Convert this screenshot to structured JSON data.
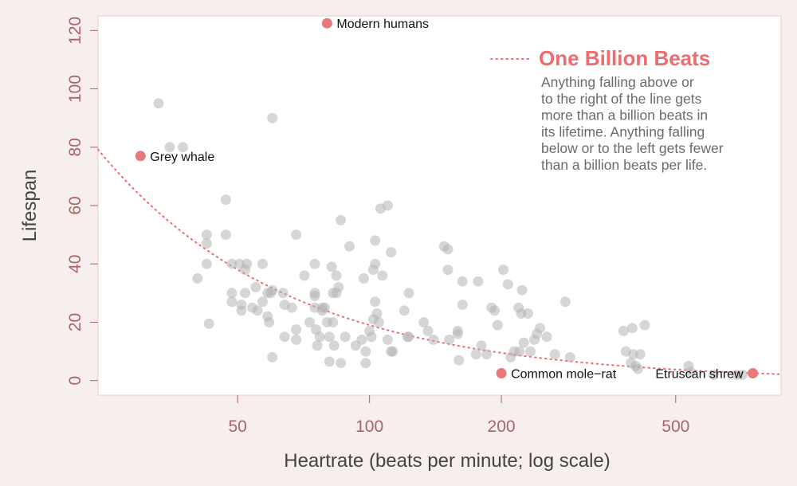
{
  "chart_data": {
    "type": "scatter",
    "title": "",
    "xlabel": "Heartrate (beats per minute; log scale)",
    "ylabel": "Lifespan",
    "x_scale": "log",
    "xlim": [
      24,
      870
    ],
    "ylim": [
      -5,
      125
    ],
    "x_ticks": [
      50,
      100,
      200,
      500
    ],
    "x_tick_labels": [
      "50",
      "100",
      "200",
      "500"
    ],
    "y_ticks": [
      0,
      20,
      40,
      60,
      80,
      100,
      120
    ],
    "y_tick_labels": [
      "0",
      "20",
      "40",
      "60",
      "80",
      "100",
      "120"
    ],
    "grid": false,
    "colors": {
      "points": "#b5b5b5",
      "highlight": "#e8787b",
      "curve": "#ef6a6d"
    },
    "points": [
      {
        "x": 33,
        "y": 95
      },
      {
        "x": 35,
        "y": 80
      },
      {
        "x": 37.5,
        "y": 80
      },
      {
        "x": 42.5,
        "y": 50
      },
      {
        "x": 42.5,
        "y": 47
      },
      {
        "x": 40.5,
        "y": 35
      },
      {
        "x": 42.5,
        "y": 40
      },
      {
        "x": 43,
        "y": 19.5
      },
      {
        "x": 47,
        "y": 62
      },
      {
        "x": 47,
        "y": 50
      },
      {
        "x": 48.5,
        "y": 40
      },
      {
        "x": 48.5,
        "y": 30
      },
      {
        "x": 48.5,
        "y": 27
      },
      {
        "x": 50.5,
        "y": 40
      },
      {
        "x": 52.5,
        "y": 40
      },
      {
        "x": 52,
        "y": 38
      },
      {
        "x": 51,
        "y": 26
      },
      {
        "x": 51,
        "y": 24
      },
      {
        "x": 52,
        "y": 30
      },
      {
        "x": 54,
        "y": 25
      },
      {
        "x": 55,
        "y": 32
      },
      {
        "x": 55.5,
        "y": 24
      },
      {
        "x": 57,
        "y": 40
      },
      {
        "x": 57,
        "y": 27
      },
      {
        "x": 58.5,
        "y": 30
      },
      {
        "x": 58.5,
        "y": 22
      },
      {
        "x": 59,
        "y": 20
      },
      {
        "x": 59.5,
        "y": 30
      },
      {
        "x": 60,
        "y": 90
      },
      {
        "x": 60,
        "y": 31
      },
      {
        "x": 60,
        "y": 8
      },
      {
        "x": 63.5,
        "y": 30
      },
      {
        "x": 64,
        "y": 26
      },
      {
        "x": 64,
        "y": 15
      },
      {
        "x": 66.5,
        "y": 25
      },
      {
        "x": 68,
        "y": 50
      },
      {
        "x": 68,
        "y": 17.5
      },
      {
        "x": 68,
        "y": 14
      },
      {
        "x": 71,
        "y": 36
      },
      {
        "x": 73,
        "y": 20
      },
      {
        "x": 75,
        "y": 40
      },
      {
        "x": 75,
        "y": 30
      },
      {
        "x": 75,
        "y": 29
      },
      {
        "x": 75,
        "y": 25
      },
      {
        "x": 75.5,
        "y": 17.5
      },
      {
        "x": 76,
        "y": 12
      },
      {
        "x": 77,
        "y": 15
      },
      {
        "x": 78,
        "y": 25
      },
      {
        "x": 78,
        "y": 24
      },
      {
        "x": 79,
        "y": 25
      },
      {
        "x": 80,
        "y": 20
      },
      {
        "x": 81,
        "y": 15
      },
      {
        "x": 81,
        "y": 6.5
      },
      {
        "x": 82,
        "y": 39
      },
      {
        "x": 82.5,
        "y": 30
      },
      {
        "x": 82.5,
        "y": 20
      },
      {
        "x": 83,
        "y": 12
      },
      {
        "x": 84,
        "y": 36
      },
      {
        "x": 84,
        "y": 30
      },
      {
        "x": 85,
        "y": 32
      },
      {
        "x": 86,
        "y": 55
      },
      {
        "x": 86,
        "y": 6
      },
      {
        "x": 88,
        "y": 15
      },
      {
        "x": 90,
        "y": 46
      },
      {
        "x": 93,
        "y": 12
      },
      {
        "x": 96,
        "y": 14
      },
      {
        "x": 97,
        "y": 35
      },
      {
        "x": 98,
        "y": 10
      },
      {
        "x": 98,
        "y": 6
      },
      {
        "x": 100,
        "y": 17
      },
      {
        "x": 101,
        "y": 15
      },
      {
        "x": 102,
        "y": 38
      },
      {
        "x": 102,
        "y": 21
      },
      {
        "x": 103,
        "y": 48
      },
      {
        "x": 103,
        "y": 40
      },
      {
        "x": 103,
        "y": 27
      },
      {
        "x": 104,
        "y": 23
      },
      {
        "x": 105,
        "y": 20
      },
      {
        "x": 106,
        "y": 59
      },
      {
        "x": 107,
        "y": 36
      },
      {
        "x": 110,
        "y": 60
      },
      {
        "x": 110,
        "y": 14
      },
      {
        "x": 112,
        "y": 44
      },
      {
        "x": 112,
        "y": 10
      },
      {
        "x": 113,
        "y": 10
      },
      {
        "x": 120,
        "y": 24
      },
      {
        "x": 122,
        "y": 15
      },
      {
        "x": 123,
        "y": 30
      },
      {
        "x": 123,
        "y": 15
      },
      {
        "x": 133,
        "y": 20
      },
      {
        "x": 136,
        "y": 17
      },
      {
        "x": 140,
        "y": 14
      },
      {
        "x": 148,
        "y": 46
      },
      {
        "x": 151,
        "y": 45
      },
      {
        "x": 151,
        "y": 38
      },
      {
        "x": 152,
        "y": 14
      },
      {
        "x": 159,
        "y": 17
      },
      {
        "x": 159,
        "y": 16
      },
      {
        "x": 160,
        "y": 7
      },
      {
        "x": 163,
        "y": 34
      },
      {
        "x": 163,
        "y": 26
      },
      {
        "x": 175,
        "y": 9
      },
      {
        "x": 177,
        "y": 34
      },
      {
        "x": 180,
        "y": 12
      },
      {
        "x": 185,
        "y": 9
      },
      {
        "x": 190,
        "y": 25
      },
      {
        "x": 193,
        "y": 24
      },
      {
        "x": 196,
        "y": 19
      },
      {
        "x": 202,
        "y": 38
      },
      {
        "x": 207,
        "y": 33
      },
      {
        "x": 210,
        "y": 8
      },
      {
        "x": 214,
        "y": 10
      },
      {
        "x": 219,
        "y": 25
      },
      {
        "x": 220,
        "y": 10
      },
      {
        "x": 222,
        "y": 23
      },
      {
        "x": 223,
        "y": 31
      },
      {
        "x": 225,
        "y": 13
      },
      {
        "x": 230,
        "y": 23
      },
      {
        "x": 233,
        "y": 10
      },
      {
        "x": 238,
        "y": 14
      },
      {
        "x": 241,
        "y": 16
      },
      {
        "x": 245,
        "y": 18
      },
      {
        "x": 254,
        "y": 15
      },
      {
        "x": 265,
        "y": 9
      },
      {
        "x": 280,
        "y": 27
      },
      {
        "x": 287,
        "y": 8
      },
      {
        "x": 380,
        "y": 17
      },
      {
        "x": 385,
        "y": 10
      },
      {
        "x": 395,
        "y": 6
      },
      {
        "x": 398,
        "y": 18
      },
      {
        "x": 400,
        "y": 9
      },
      {
        "x": 405,
        "y": 5
      },
      {
        "x": 410,
        "y": 4
      },
      {
        "x": 415,
        "y": 9
      },
      {
        "x": 425,
        "y": 19
      },
      {
        "x": 535,
        "y": 5
      },
      {
        "x": 540,
        "y": 3
      },
      {
        "x": 610,
        "y": 2
      },
      {
        "x": 690,
        "y": 2
      },
      {
        "x": 710,
        "y": 2
      }
    ],
    "highlighted": [
      {
        "label": "Modern humans",
        "x": 80,
        "y": 122.5
      },
      {
        "label": "Grey whale",
        "x": 30,
        "y": 77
      },
      {
        "label": "Common mole−rat",
        "x": 200,
        "y": 2.5
      },
      {
        "label": "Etruscan shrew",
        "x": 750,
        "y": 2.5
      }
    ],
    "curve": {
      "name": "One Billion Beats",
      "beats": 1000000000,
      "style": "dotted"
    },
    "legend": {
      "title": "One Billion Beats",
      "position": "top-right",
      "description_lines": [
        "Anything falling above or",
        "to the right of the line gets",
        "more than a billion beats in",
        "its lifetime.  Anything falling",
        "below or to the left gets fewer",
        "than a billion beats per life."
      ]
    }
  }
}
